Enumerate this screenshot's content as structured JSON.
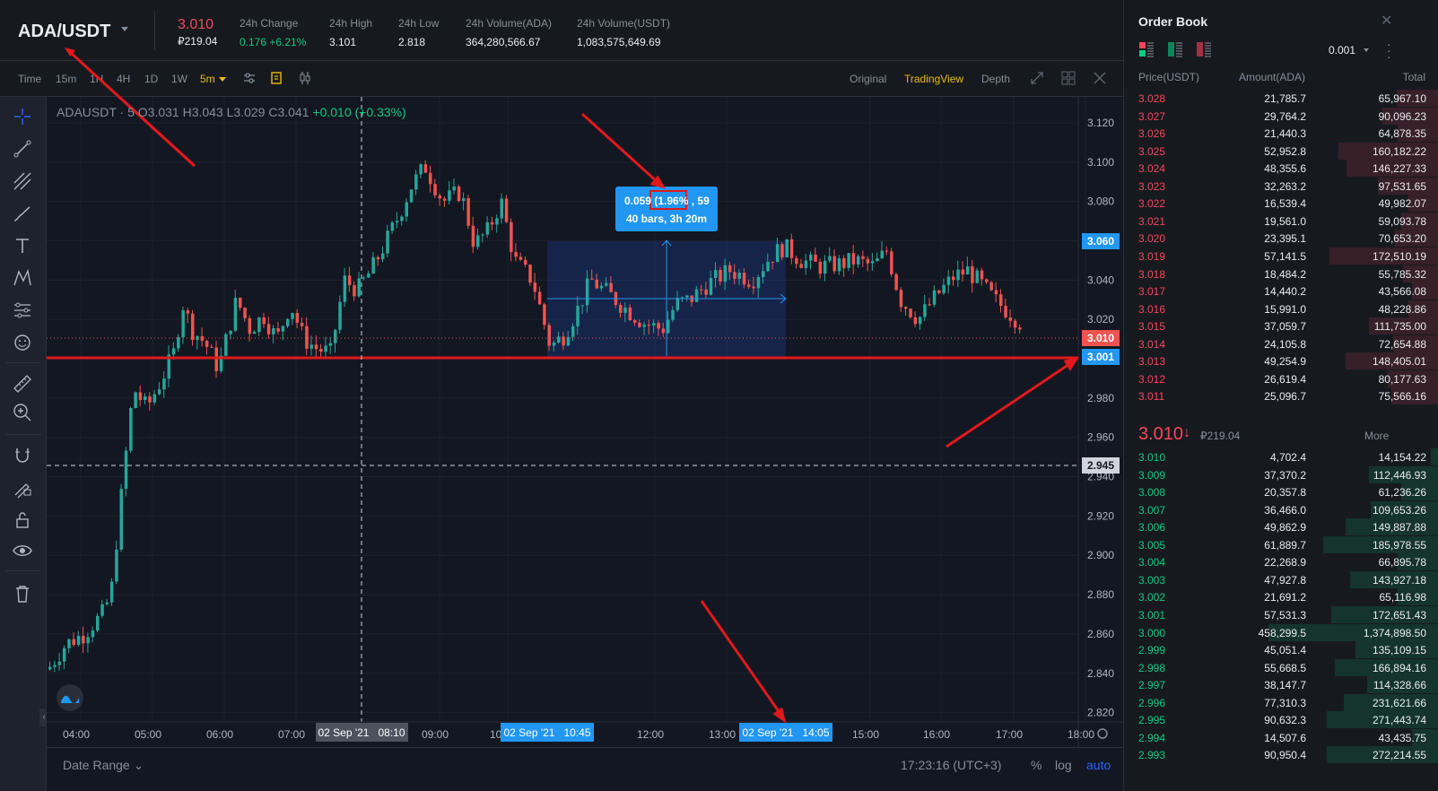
{
  "header": {
    "pair": "ADA/USDT",
    "last_price": "3.010",
    "last_price_fiat": "₽219.04",
    "stats": [
      {
        "label": "24h Change",
        "value": "0.176 +6.21%",
        "up": true
      },
      {
        "label": "24h High",
        "value": "3.101",
        "up": false
      },
      {
        "label": "24h Low",
        "value": "2.818",
        "up": false
      },
      {
        "label": "24h Volume(ADA)",
        "value": "364,280,566.67",
        "up": false
      },
      {
        "label": "24h Volume(USDT)",
        "value": "1,083,575,649.69",
        "up": false
      }
    ]
  },
  "toolbar": {
    "intervals": [
      "Time",
      "15m",
      "1H",
      "4H",
      "1D",
      "1W",
      "5m"
    ],
    "active_interval": "5m",
    "views": [
      "Original",
      "TradingView",
      "Depth"
    ],
    "active_view": "TradingView"
  },
  "chart": {
    "legend_symbol": "ADAUSDT · 5",
    "legend_o": "O3.031",
    "legend_h": "H3.043",
    "legend_l": "L3.029",
    "legend_c": "C3.041",
    "legend_change": "+0.010 (+0.33%)",
    "measure_line1_a": "0.059",
    "measure_line1_pct": "(1.96%",
    "measure_line1_b": ", 59",
    "measure_line2": "40 bars, 3h 20m",
    "price_ticks": [
      "3.120",
      "3.100",
      "3.080",
      "3.060",
      "3.040",
      "3.020",
      "2.980",
      "2.960",
      "2.940",
      "2.920",
      "2.900",
      "2.880",
      "2.860",
      "2.840",
      "2.820"
    ],
    "price_labels": {
      "range_top": "3.060",
      "last": "3.010",
      "line": "3.001",
      "crosshair": "2.945"
    },
    "time_ticks": [
      "04:00",
      "05:00",
      "06:00",
      "07:00",
      "09:00",
      "10:0",
      "12:00",
      "13:00",
      "15:00",
      "16:00",
      "17:00",
      "18:00"
    ],
    "time_labels": {
      "crosshair": "02 Sep '21   08:10",
      "range_start": "02 Sep '21   10:45",
      "range_end": "02 Sep '21   14:05"
    },
    "colors": {
      "up": "#26a69a",
      "down": "#ef5350",
      "accent": "#2196f3"
    }
  },
  "chart_bottom": {
    "date_range": "Date Range",
    "clock": "17:23:16 (UTC+3)",
    "pct": "%",
    "log": "log",
    "auto": "auto"
  },
  "orderbook": {
    "title": "Order Book",
    "tick": "0.001",
    "col_price": "Price(USDT)",
    "col_amount": "Amount(ADA)",
    "col_total": "Total",
    "asks": [
      {
        "price": "3.028",
        "amount": "21,785.7",
        "total": "65,967.10",
        "depth": 0.25
      },
      {
        "price": "3.027",
        "amount": "29,764.2",
        "total": "90,096.23",
        "depth": 0.33
      },
      {
        "price": "3.026",
        "amount": "21,440.3",
        "total": "64,878.35",
        "depth": 0.24
      },
      {
        "price": "3.025",
        "amount": "52,952.8",
        "total": "160,182.22",
        "depth": 0.59
      },
      {
        "price": "3.024",
        "amount": "48,355.6",
        "total": "146,227.33",
        "depth": 0.54
      },
      {
        "price": "3.023",
        "amount": "32,263.2",
        "total": "97,531.65",
        "depth": 0.36
      },
      {
        "price": "3.022",
        "amount": "16,539.4",
        "total": "49,982.07",
        "depth": 0.18
      },
      {
        "price": "3.021",
        "amount": "19,561.0",
        "total": "59,093.78",
        "depth": 0.22
      },
      {
        "price": "3.020",
        "amount": "23,395.1",
        "total": "70,653.20",
        "depth": 0.26
      },
      {
        "price": "3.019",
        "amount": "57,141.5",
        "total": "172,510.19",
        "depth": 0.64
      },
      {
        "price": "3.018",
        "amount": "18,484.2",
        "total": "55,785.32",
        "depth": 0.21
      },
      {
        "price": "3.017",
        "amount": "14,440.2",
        "total": "43,566.08",
        "depth": 0.16
      },
      {
        "price": "3.016",
        "amount": "15,991.0",
        "total": "48,228.86",
        "depth": 0.18
      },
      {
        "price": "3.015",
        "amount": "37,059.7",
        "total": "111,735.00",
        "depth": 0.41
      },
      {
        "price": "3.014",
        "amount": "24,105.8",
        "total": "72,654.88",
        "depth": 0.27
      },
      {
        "price": "3.013",
        "amount": "49,254.9",
        "total": "148,405.01",
        "depth": 0.55
      },
      {
        "price": "3.012",
        "amount": "26,619.4",
        "total": "80,177.63",
        "depth": 0.3
      },
      {
        "price": "3.011",
        "amount": "25,096.7",
        "total": "75,566.16",
        "depth": 0.28
      }
    ],
    "mid_price": "3.010",
    "mid_arrow": "↓",
    "mid_fiat": "₽219.04",
    "more": "More",
    "bids": [
      {
        "price": "3.010",
        "amount": "4,702.4",
        "total": "14,154.22",
        "depth": 0.05
      },
      {
        "price": "3.009",
        "amount": "37,370.2",
        "total": "112,446.93",
        "depth": 0.41
      },
      {
        "price": "3.008",
        "amount": "20,357.8",
        "total": "61,236.26",
        "depth": 0.22
      },
      {
        "price": "3.007",
        "amount": "36,466.0",
        "total": "109,653.26",
        "depth": 0.4
      },
      {
        "price": "3.006",
        "amount": "49,862.9",
        "total": "149,887.88",
        "depth": 0.55
      },
      {
        "price": "3.005",
        "amount": "61,889.7",
        "total": "185,978.55",
        "depth": 0.68
      },
      {
        "price": "3.004",
        "amount": "22,268.9",
        "total": "66,895.78",
        "depth": 0.24
      },
      {
        "price": "3.003",
        "amount": "47,927.8",
        "total": "143,927.18",
        "depth": 0.52
      },
      {
        "price": "3.002",
        "amount": "21,691.2",
        "total": "65,116.98",
        "depth": 0.24
      },
      {
        "price": "3.001",
        "amount": "57,531.3",
        "total": "172,651.43",
        "depth": 0.63
      },
      {
        "price": "3.000",
        "amount": "458,299.5",
        "total": "1,374,898.50",
        "depth": 1.0
      },
      {
        "price": "2.999",
        "amount": "45,051.4",
        "total": "135,109.15",
        "depth": 0.49
      },
      {
        "price": "2.998",
        "amount": "55,668.5",
        "total": "166,894.16",
        "depth": 0.61
      },
      {
        "price": "2.997",
        "amount": "38,147.7",
        "total": "114,328.66",
        "depth": 0.42
      },
      {
        "price": "2.996",
        "amount": "77,310.3",
        "total": "231,621.66",
        "depth": 0.56
      },
      {
        "price": "2.995",
        "amount": "90,632.3",
        "total": "271,443.74",
        "depth": 0.66
      },
      {
        "price": "2.994",
        "amount": "14,507.6",
        "total": "43,435.75",
        "depth": 0.16
      },
      {
        "price": "2.993",
        "amount": "90,950.4",
        "total": "272,214.55",
        "depth": 0.66
      }
    ]
  }
}
